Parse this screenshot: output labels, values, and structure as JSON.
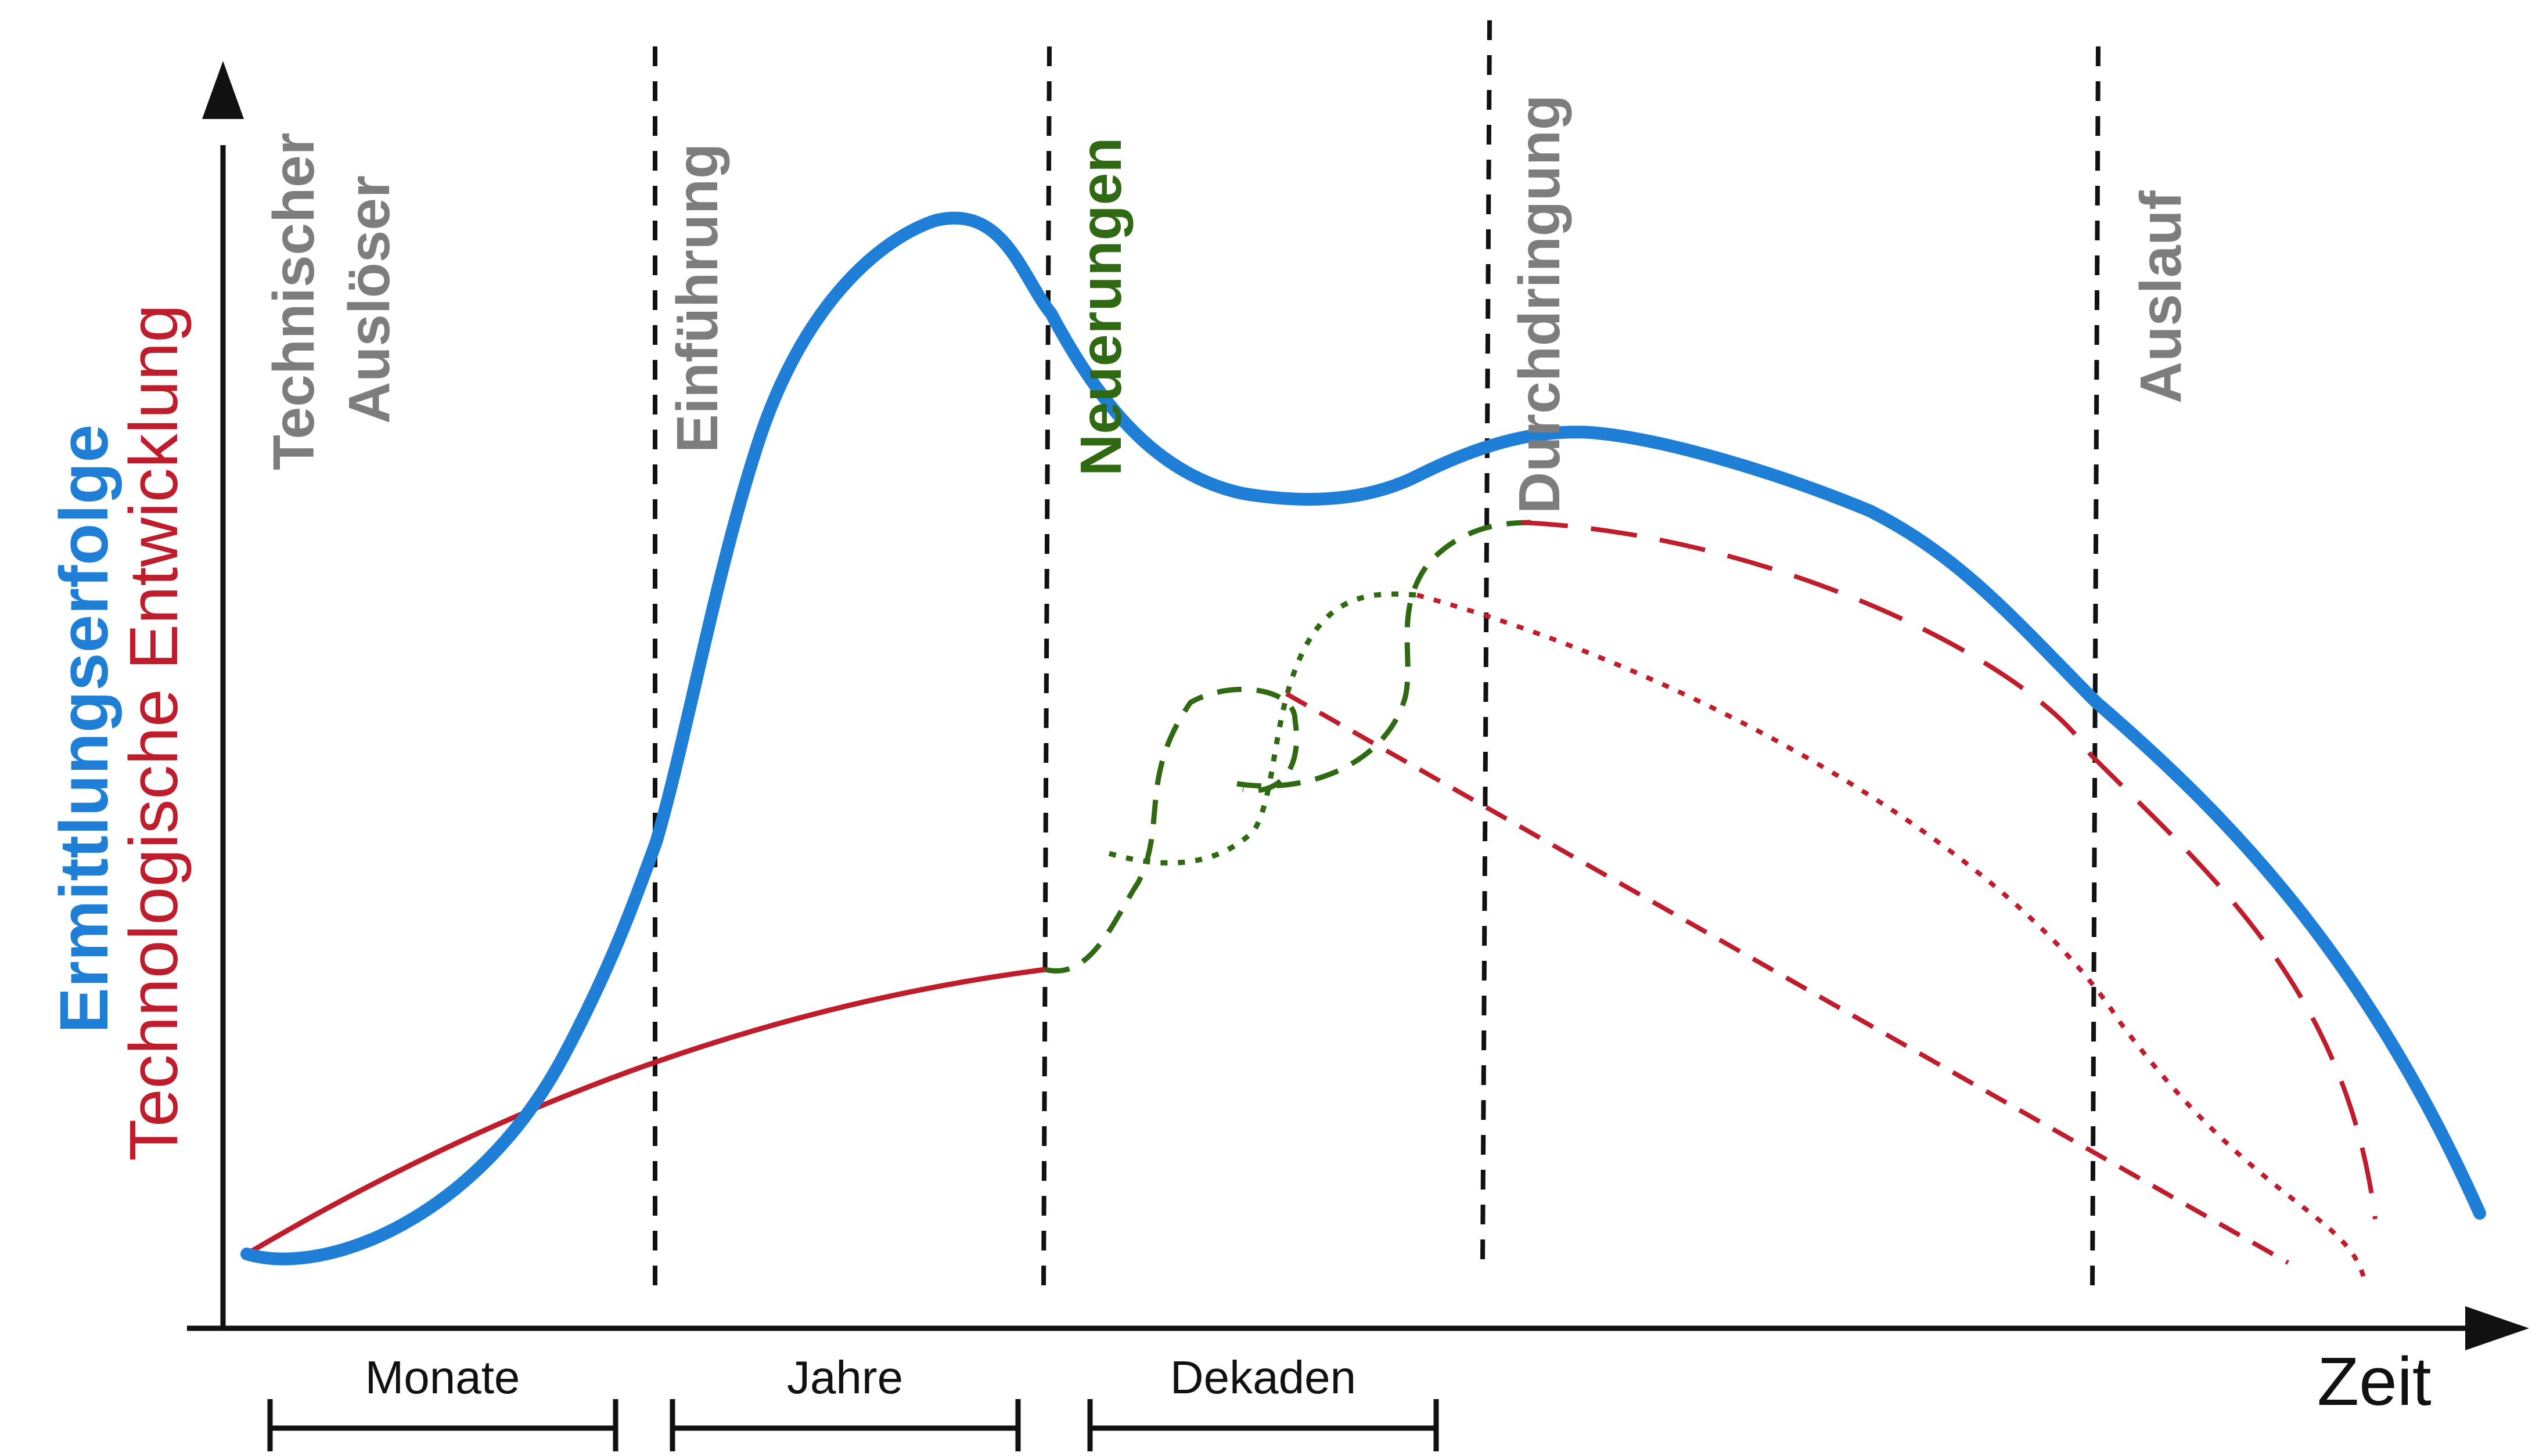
{
  "colors": {
    "blue": "#1f7fd6",
    "red": "#c01d2c",
    "green": "#2f6a12",
    "gray": "#7d7d7d",
    "black": "#111111"
  },
  "axes": {
    "y_label_1": "Ermittlungserfolge",
    "y_label_2": "Technologische Entwicklung",
    "x_label": "Zeit"
  },
  "phases": [
    {
      "line1": "Technischer",
      "line2": "Auslöser"
    },
    {
      "line1": "Einführung"
    },
    {
      "line1": "Neuerungen"
    },
    {
      "line1": "Durchdringung"
    },
    {
      "line1": "Auslauf"
    }
  ],
  "durations": [
    "Monate",
    "Jahre",
    "Dekaden"
  ],
  "legend": {
    "blue_curve": "Ermittlungserfolge",
    "red_curve": "Technologische Entwicklung",
    "green_curve": "Neuerungen"
  }
}
